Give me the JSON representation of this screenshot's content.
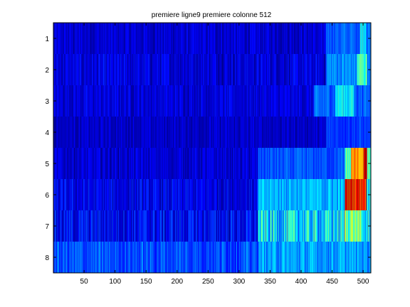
{
  "chart_data": {
    "type": "heatmap",
    "title": "premiere ligne9 premiere colonne 512",
    "xlabel": "",
    "ylabel": "",
    "colormap": "jet",
    "xlim": [
      0.5,
      512.5
    ],
    "ylim": [
      8.5,
      0.5
    ],
    "columns": 512,
    "rows": [
      1,
      2,
      3,
      4,
      5,
      6,
      7,
      8
    ],
    "xticks": [
      50,
      100,
      150,
      200,
      250,
      300,
      350,
      400,
      450,
      500
    ],
    "yticks": [
      1,
      2,
      3,
      4,
      5,
      6,
      7,
      8
    ],
    "row_profiles": [
      {
        "row": 1,
        "base": 0.08,
        "noise": 0.06,
        "segments": [
          {
            "from": 440,
            "to": 512,
            "level": 0.22
          },
          {
            "from": 495,
            "to": 505,
            "level": 0.38
          }
        ]
      },
      {
        "row": 2,
        "base": 0.09,
        "noise": 0.07,
        "segments": [
          {
            "from": 440,
            "to": 512,
            "level": 0.26
          },
          {
            "from": 490,
            "to": 506,
            "level": 0.44
          }
        ]
      },
      {
        "row": 3,
        "base": 0.09,
        "noise": 0.06,
        "segments": [
          {
            "from": 420,
            "to": 512,
            "level": 0.22
          },
          {
            "from": 455,
            "to": 485,
            "level": 0.36
          }
        ]
      },
      {
        "row": 4,
        "base": 0.07,
        "noise": 0.05,
        "segments": [
          {
            "from": 440,
            "to": 512,
            "level": 0.18
          }
        ]
      },
      {
        "row": 5,
        "base": 0.08,
        "noise": 0.06,
        "segments": [
          {
            "from": 330,
            "to": 470,
            "level": 0.2
          },
          {
            "from": 470,
            "to": 480,
            "level": 0.45
          },
          {
            "from": 480,
            "to": 500,
            "level": 0.72
          },
          {
            "from": 500,
            "to": 506,
            "level": 0.9
          },
          {
            "from": 506,
            "to": 512,
            "level": 0.45
          }
        ]
      },
      {
        "row": 6,
        "base": 0.1,
        "noise": 0.08,
        "segments": [
          {
            "from": 330,
            "to": 470,
            "level": 0.3
          },
          {
            "from": 470,
            "to": 474,
            "level": 0.95
          },
          {
            "from": 474,
            "to": 505,
            "level": 0.88
          },
          {
            "from": 505,
            "to": 512,
            "level": 0.4
          }
        ]
      },
      {
        "row": 7,
        "base": 0.12,
        "noise": 0.1,
        "segments": [
          {
            "from": 330,
            "to": 512,
            "level": 0.34
          },
          {
            "from": 470,
            "to": 495,
            "level": 0.5
          }
        ]
      },
      {
        "row": 8,
        "base": 0.2,
        "noise": 0.08,
        "segments": [
          {
            "from": 330,
            "to": 512,
            "level": 0.28
          }
        ]
      }
    ]
  }
}
